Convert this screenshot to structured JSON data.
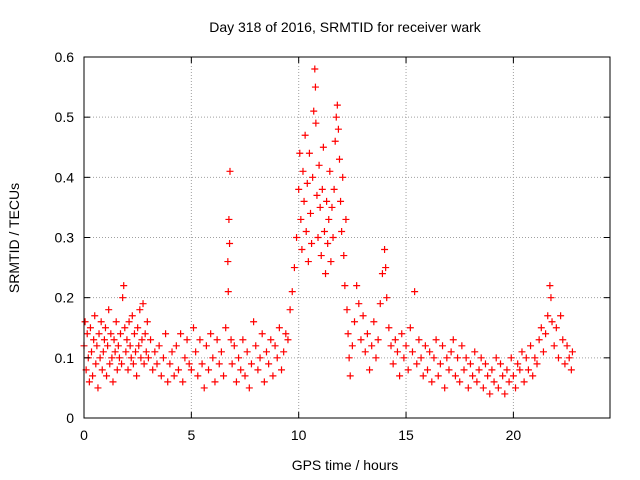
{
  "chart_data": {
    "type": "scatter",
    "title": "Day 318 of 2016, SRMTID for receiver wark",
    "xlabel": "GPS time / hours",
    "ylabel": "SRMTID / TECUs",
    "xlim": [
      0,
      24.5
    ],
    "ylim": [
      0,
      0.6
    ],
    "xticks": [
      0,
      5,
      10,
      15,
      20
    ],
    "yticks": [
      0,
      0.1,
      0.2,
      0.3,
      0.4,
      0.5,
      0.6
    ],
    "xtick_labels": [
      "0",
      "5",
      "10",
      "15",
      "20"
    ],
    "ytick_labels": [
      "0",
      "0.1",
      "0.2",
      "0.3",
      "0.4",
      "0.5",
      "0.6"
    ],
    "grid": true,
    "marker": "plus",
    "series": [
      {
        "name": "SRMTID",
        "color": "#ff0000",
        "points": [
          [
            0.0,
            0.12
          ],
          [
            0.05,
            0.16
          ],
          [
            0.1,
            0.08
          ],
          [
            0.15,
            0.14
          ],
          [
            0.2,
            0.1
          ],
          [
            0.25,
            0.06
          ],
          [
            0.3,
            0.15
          ],
          [
            0.35,
            0.11
          ],
          [
            0.4,
            0.07
          ],
          [
            0.45,
            0.13
          ],
          [
            0.5,
            0.17
          ],
          [
            0.55,
            0.09
          ],
          [
            0.6,
            0.12
          ],
          [
            0.65,
            0.05
          ],
          [
            0.7,
            0.14
          ],
          [
            0.75,
            0.1
          ],
          [
            0.8,
            0.16
          ],
          [
            0.85,
            0.08
          ],
          [
            0.9,
            0.11
          ],
          [
            0.95,
            0.13
          ],
          [
            1.0,
            0.15
          ],
          [
            1.05,
            0.07
          ],
          [
            1.1,
            0.12
          ],
          [
            1.15,
            0.18
          ],
          [
            1.2,
            0.09
          ],
          [
            1.25,
            0.14
          ],
          [
            1.3,
            0.1
          ],
          [
            1.35,
            0.06
          ],
          [
            1.4,
            0.13
          ],
          [
            1.45,
            0.11
          ],
          [
            1.5,
            0.16
          ],
          [
            1.55,
            0.08
          ],
          [
            1.6,
            0.12
          ],
          [
            1.65,
            0.1
          ],
          [
            1.7,
            0.14
          ],
          [
            1.75,
            0.09
          ],
          [
            1.8,
            0.2
          ],
          [
            1.85,
            0.22
          ],
          [
            1.9,
            0.15
          ],
          [
            1.95,
            0.11
          ],
          [
            2.0,
            0.13
          ],
          [
            2.05,
            0.08
          ],
          [
            2.1,
            0.16
          ],
          [
            2.15,
            0.12
          ],
          [
            2.2,
            0.1
          ],
          [
            2.25,
            0.17
          ],
          [
            2.3,
            0.09
          ],
          [
            2.35,
            0.14
          ],
          [
            2.4,
            0.11
          ],
          [
            2.45,
            0.07
          ],
          [
            2.5,
            0.15
          ],
          [
            2.55,
            0.12
          ],
          [
            2.6,
            0.18
          ],
          [
            2.65,
            0.1
          ],
          [
            2.7,
            0.13
          ],
          [
            2.75,
            0.19
          ],
          [
            2.8,
            0.09
          ],
          [
            2.85,
            0.14
          ],
          [
            2.9,
            0.11
          ],
          [
            2.95,
            0.16
          ],
          [
            3.0,
            0.1
          ],
          [
            3.1,
            0.13
          ],
          [
            3.2,
            0.08
          ],
          [
            3.3,
            0.11
          ],
          [
            3.4,
            0.09
          ],
          [
            3.5,
            0.12
          ],
          [
            3.6,
            0.07
          ],
          [
            3.7,
            0.1
          ],
          [
            3.8,
            0.14
          ],
          [
            3.9,
            0.06
          ],
          [
            4.0,
            0.09
          ],
          [
            4.1,
            0.11
          ],
          [
            4.2,
            0.07
          ],
          [
            4.3,
            0.12
          ],
          [
            4.4,
            0.08
          ],
          [
            4.5,
            0.14
          ],
          [
            4.6,
            0.06
          ],
          [
            4.7,
            0.1
          ],
          [
            4.8,
            0.13
          ],
          [
            4.9,
            0.09
          ],
          [
            5.0,
            0.08
          ],
          [
            5.1,
            0.15
          ],
          [
            5.2,
            0.11
          ],
          [
            5.3,
            0.07
          ],
          [
            5.4,
            0.13
          ],
          [
            5.5,
            0.09
          ],
          [
            5.6,
            0.05
          ],
          [
            5.7,
            0.12
          ],
          [
            5.8,
            0.08
          ],
          [
            5.9,
            0.14
          ],
          [
            6.0,
            0.1
          ],
          [
            6.1,
            0.06
          ],
          [
            6.2,
            0.13
          ],
          [
            6.3,
            0.09
          ],
          [
            6.4,
            0.11
          ],
          [
            6.5,
            0.07
          ],
          [
            6.6,
            0.15
          ],
          [
            6.7,
            0.26
          ],
          [
            6.72,
            0.21
          ],
          [
            6.75,
            0.33
          ],
          [
            6.78,
            0.29
          ],
          [
            6.8,
            0.41
          ],
          [
            6.85,
            0.13
          ],
          [
            6.9,
            0.09
          ],
          [
            7.0,
            0.12
          ],
          [
            7.1,
            0.06
          ],
          [
            7.2,
            0.1
          ],
          [
            7.3,
            0.08
          ],
          [
            7.4,
            0.13
          ],
          [
            7.5,
            0.07
          ],
          [
            7.6,
            0.11
          ],
          [
            7.7,
            0.05
          ],
          [
            7.8,
            0.09
          ],
          [
            7.9,
            0.16
          ],
          [
            8.0,
            0.12
          ],
          [
            8.1,
            0.08
          ],
          [
            8.2,
            0.1
          ],
          [
            8.3,
            0.14
          ],
          [
            8.4,
            0.06
          ],
          [
            8.5,
            0.11
          ],
          [
            8.6,
            0.09
          ],
          [
            8.7,
            0.13
          ],
          [
            8.8,
            0.07
          ],
          [
            8.9,
            0.12
          ],
          [
            9.0,
            0.1
          ],
          [
            9.1,
            0.15
          ],
          [
            9.2,
            0.08
          ],
          [
            9.3,
            0.11
          ],
          [
            9.4,
            0.14
          ],
          [
            9.5,
            0.13
          ],
          [
            9.6,
            0.18
          ],
          [
            9.7,
            0.21
          ],
          [
            9.8,
            0.25
          ],
          [
            9.9,
            0.3
          ],
          [
            10.0,
            0.38
          ],
          [
            10.05,
            0.44
          ],
          [
            10.1,
            0.33
          ],
          [
            10.15,
            0.28
          ],
          [
            10.2,
            0.41
          ],
          [
            10.25,
            0.36
          ],
          [
            10.3,
            0.47
          ],
          [
            10.35,
            0.31
          ],
          [
            10.4,
            0.39
          ],
          [
            10.45,
            0.26
          ],
          [
            10.5,
            0.44
          ],
          [
            10.55,
            0.34
          ],
          [
            10.6,
            0.29
          ],
          [
            10.65,
            0.4
          ],
          [
            10.7,
            0.51
          ],
          [
            10.75,
            0.58
          ],
          [
            10.78,
            0.55
          ],
          [
            10.8,
            0.49
          ],
          [
            10.85,
            0.37
          ],
          [
            10.9,
            0.3
          ],
          [
            10.95,
            0.42
          ],
          [
            11.0,
            0.35
          ],
          [
            11.05,
            0.27
          ],
          [
            11.1,
            0.38
          ],
          [
            11.15,
            0.45
          ],
          [
            11.2,
            0.31
          ],
          [
            11.25,
            0.24
          ],
          [
            11.3,
            0.36
          ],
          [
            11.35,
            0.29
          ],
          [
            11.4,
            0.33
          ],
          [
            11.45,
            0.41
          ],
          [
            11.5,
            0.26
          ],
          [
            11.55,
            0.35
          ],
          [
            11.6,
            0.3
          ],
          [
            11.65,
            0.38
          ],
          [
            11.7,
            0.46
          ],
          [
            11.75,
            0.5
          ],
          [
            11.8,
            0.52
          ],
          [
            11.85,
            0.48
          ],
          [
            11.9,
            0.43
          ],
          [
            11.95,
            0.36
          ],
          [
            12.0,
            0.31
          ],
          [
            12.05,
            0.4
          ],
          [
            12.1,
            0.27
          ],
          [
            12.15,
            0.22
          ],
          [
            12.2,
            0.33
          ],
          [
            12.25,
            0.18
          ],
          [
            12.3,
            0.14
          ],
          [
            12.35,
            0.1
          ],
          [
            12.4,
            0.07
          ],
          [
            12.5,
            0.12
          ],
          [
            12.6,
            0.16
          ],
          [
            12.7,
            0.22
          ],
          [
            12.8,
            0.19
          ],
          [
            12.9,
            0.13
          ],
          [
            13.0,
            0.17
          ],
          [
            13.1,
            0.11
          ],
          [
            13.2,
            0.14
          ],
          [
            13.3,
            0.08
          ],
          [
            13.4,
            0.12
          ],
          [
            13.5,
            0.16
          ],
          [
            13.6,
            0.1
          ],
          [
            13.7,
            0.13
          ],
          [
            13.8,
            0.19
          ],
          [
            13.9,
            0.24
          ],
          [
            14.0,
            0.28
          ],
          [
            14.05,
            0.25
          ],
          [
            14.1,
            0.2
          ],
          [
            14.2,
            0.15
          ],
          [
            14.3,
            0.12
          ],
          [
            14.4,
            0.09
          ],
          [
            14.5,
            0.13
          ],
          [
            14.6,
            0.11
          ],
          [
            14.7,
            0.07
          ],
          [
            14.8,
            0.14
          ],
          [
            14.9,
            0.1
          ],
          [
            15.0,
            0.12
          ],
          [
            15.1,
            0.08
          ],
          [
            15.2,
            0.15
          ],
          [
            15.3,
            0.11
          ],
          [
            15.4,
            0.21
          ],
          [
            15.5,
            0.09
          ],
          [
            15.6,
            0.13
          ],
          [
            15.7,
            0.1
          ],
          [
            15.8,
            0.07
          ],
          [
            15.9,
            0.12
          ],
          [
            16.0,
            0.08
          ],
          [
            16.1,
            0.11
          ],
          [
            16.2,
            0.06
          ],
          [
            16.3,
            0.1
          ],
          [
            16.4,
            0.13
          ],
          [
            16.5,
            0.07
          ],
          [
            16.6,
            0.09
          ],
          [
            16.7,
            0.12
          ],
          [
            16.8,
            0.05
          ],
          [
            16.9,
            0.1
          ],
          [
            17.0,
            0.08
          ],
          [
            17.1,
            0.11
          ],
          [
            17.2,
            0.13
          ],
          [
            17.3,
            0.07
          ],
          [
            17.4,
            0.1
          ],
          [
            17.5,
            0.06
          ],
          [
            17.6,
            0.12
          ],
          [
            17.7,
            0.08
          ],
          [
            17.8,
            0.1
          ],
          [
            17.9,
            0.05
          ],
          [
            18.0,
            0.09
          ],
          [
            18.1,
            0.07
          ],
          [
            18.2,
            0.11
          ],
          [
            18.3,
            0.06
          ],
          [
            18.4,
            0.08
          ],
          [
            18.5,
            0.1
          ],
          [
            18.6,
            0.05
          ],
          [
            18.7,
            0.09
          ],
          [
            18.8,
            0.07
          ],
          [
            18.9,
            0.04
          ],
          [
            19.0,
            0.08
          ],
          [
            19.1,
            0.06
          ],
          [
            19.2,
            0.1
          ],
          [
            19.3,
            0.05
          ],
          [
            19.4,
            0.09
          ],
          [
            19.5,
            0.07
          ],
          [
            19.6,
            0.04
          ],
          [
            19.7,
            0.08
          ],
          [
            19.8,
            0.06
          ],
          [
            19.9,
            0.1
          ],
          [
            20.0,
            0.07
          ],
          [
            20.1,
            0.05
          ],
          [
            20.2,
            0.09
          ],
          [
            20.3,
            0.08
          ],
          [
            20.4,
            0.11
          ],
          [
            20.5,
            0.06
          ],
          [
            20.6,
            0.1
          ],
          [
            20.7,
            0.08
          ],
          [
            20.8,
            0.12
          ],
          [
            20.9,
            0.07
          ],
          [
            21.0,
            0.1
          ],
          [
            21.1,
            0.09
          ],
          [
            21.2,
            0.13
          ],
          [
            21.3,
            0.15
          ],
          [
            21.4,
            0.11
          ],
          [
            21.5,
            0.14
          ],
          [
            21.6,
            0.17
          ],
          [
            21.7,
            0.22
          ],
          [
            21.75,
            0.2
          ],
          [
            21.8,
            0.16
          ],
          [
            21.9,
            0.12
          ],
          [
            22.0,
            0.15
          ],
          [
            22.1,
            0.1
          ],
          [
            22.2,
            0.17
          ],
          [
            22.3,
            0.13
          ],
          [
            22.4,
            0.09
          ],
          [
            22.5,
            0.12
          ],
          [
            22.6,
            0.1
          ],
          [
            22.7,
            0.08
          ],
          [
            22.75,
            0.11
          ]
        ]
      }
    ]
  }
}
